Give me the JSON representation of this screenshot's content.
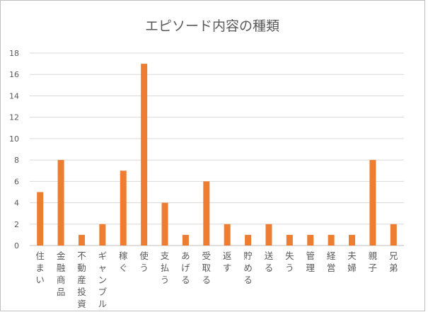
{
  "chart_data": {
    "type": "bar",
    "title": "エピソード内容の種類",
    "xlabel": "",
    "ylabel": "",
    "ylim": [
      0,
      18
    ],
    "yticks": [
      0,
      2,
      4,
      6,
      8,
      10,
      12,
      14,
      16,
      18
    ],
    "grid": true,
    "legend": "none",
    "bar_color": "#ED7D31",
    "categories": [
      "住まい",
      "金融商品",
      "不動産投資",
      "ギャンブル",
      "稼ぐ",
      "使う",
      "支払う",
      "あげる",
      "受取る",
      "返す",
      "貯める",
      "送る",
      "失う",
      "管理",
      "経営",
      "夫婦",
      "親子",
      "兄弟"
    ],
    "values": [
      5,
      8,
      1,
      2,
      7,
      17,
      4,
      1,
      6,
      2,
      1,
      2,
      1,
      1,
      1,
      1,
      8,
      2
    ]
  }
}
